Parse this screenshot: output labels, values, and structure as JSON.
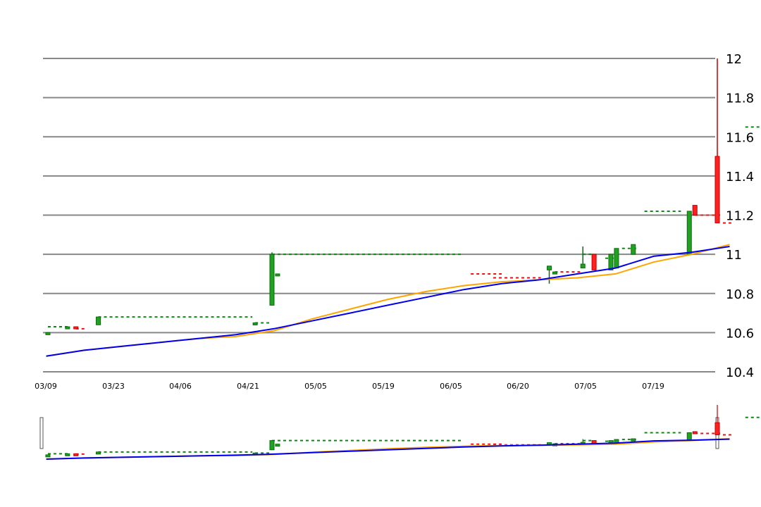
{
  "chart_data": {
    "type": "candlestick",
    "x_tick_labels": [
      "03/09",
      "03/23",
      "04/06",
      "04/21",
      "05/05",
      "05/19",
      "06/05",
      "06/20",
      "07/05",
      "07/19"
    ],
    "y_tick_labels": [
      "10.4",
      "10.6",
      "10.8",
      "11",
      "11.2",
      "11.4",
      "11.6",
      "11.8",
      "12"
    ],
    "ylim": [
      10.4,
      12.0
    ],
    "grid": true,
    "colors": {
      "up": "#22a022",
      "up_border": "#0a6f0a",
      "down": "#ff2020",
      "down_border": "#c00000",
      "ma_short": "#0000ee",
      "ma_long": "#ffa500",
      "grid": "#888888",
      "dash_up": "#118811",
      "dash_down": "#ee1111"
    },
    "candles": [
      {
        "x": 0.5,
        "open": 10.6,
        "close": 10.6,
        "high": 10.6,
        "low": 10.6
      },
      {
        "x": 4,
        "open": 10.62,
        "close": 10.63,
        "high": 10.63,
        "low": 10.62
      },
      {
        "x": 5.5,
        "open": 10.63,
        "close": 10.62,
        "high": 10.63,
        "low": 10.62
      },
      {
        "x": 9.5,
        "open": 10.64,
        "close": 10.68,
        "high": 10.68,
        "low": 10.64
      },
      {
        "x": 37.5,
        "open": 10.645,
        "close": 10.65,
        "high": 10.65,
        "low": 10.645
      },
      {
        "x": 40.5,
        "open": 10.74,
        "close": 11.0,
        "high": 11.01,
        "low": 10.74
      },
      {
        "x": 41.5,
        "open": 10.9,
        "close": 10.9,
        "high": 10.9,
        "low": 10.9
      },
      {
        "x": 90,
        "open": 10.92,
        "close": 10.94,
        "high": 10.94,
        "low": 10.85
      },
      {
        "x": 91,
        "open": 10.91,
        "close": 10.91,
        "high": 10.91,
        "low": 10.91
      },
      {
        "x": 96,
        "open": 10.93,
        "close": 10.95,
        "high": 11.04,
        "low": 10.93
      },
      {
        "x": 98,
        "open": 11.0,
        "close": 10.92,
        "high": 11.0,
        "low": 10.92
      },
      {
        "x": 101,
        "open": 10.92,
        "close": 11.0,
        "high": 11.0,
        "low": 10.92
      },
      {
        "x": 102,
        "open": 10.93,
        "close": 11.03,
        "high": 11.03,
        "low": 10.93
      },
      {
        "x": 105,
        "open": 11.0,
        "close": 11.05,
        "high": 11.05,
        "low": 11.0
      },
      {
        "x": 115,
        "open": 11.0,
        "close": 11.22,
        "high": 11.22,
        "low": 11.0
      },
      {
        "x": 116,
        "open": 11.25,
        "close": 11.2,
        "high": 11.25,
        "low": 11.2
      },
      {
        "x": 120,
        "open": 11.5,
        "close": 11.16,
        "high": 12.0,
        "low": 11.16
      }
    ],
    "dashed_levels": [
      {
        "x_start": 0.5,
        "x_end": 4,
        "value": 10.63,
        "direction": "up"
      },
      {
        "x_start": 5.5,
        "x_end": 7,
        "value": 10.62,
        "direction": "down"
      },
      {
        "x_start": 9.5,
        "x_end": 36.5,
        "value": 10.68,
        "direction": "up"
      },
      {
        "x_start": 37.5,
        "x_end": 39.5,
        "value": 10.65,
        "direction": "up"
      },
      {
        "x_start": 40.5,
        "x_end": 74,
        "value": 11.0,
        "direction": "up"
      },
      {
        "x_start": 76,
        "x_end": 81,
        "value": 10.9,
        "direction": "down"
      },
      {
        "x_start": 80,
        "x_end": 88,
        "value": 10.88,
        "direction": "down"
      },
      {
        "x_start": 91,
        "x_end": 95,
        "value": 10.91,
        "direction": "down"
      },
      {
        "x_start": 96,
        "x_end": 97,
        "value": 11.0,
        "direction": "up"
      },
      {
        "x_start": 100,
        "x_end": 101,
        "value": 10.98,
        "direction": "up"
      },
      {
        "x_start": 103,
        "x_end": 105,
        "value": 11.03,
        "direction": "up"
      },
      {
        "x_start": 107,
        "x_end": 113,
        "value": 11.22,
        "direction": "up"
      },
      {
        "x_start": 116,
        "x_end": 120,
        "value": 11.2,
        "direction": "down"
      },
      {
        "x_start": 121,
        "x_end": 122,
        "value": 11.16,
        "direction": "down"
      },
      {
        "x_start": 125,
        "x_end": 127,
        "value": 11.65,
        "direction": "up"
      }
    ],
    "ma_short": [
      10.48,
      10.51,
      10.53,
      10.55,
      10.57,
      10.59,
      10.62,
      10.66,
      10.7,
      10.74,
      10.78,
      10.82,
      10.85,
      10.87,
      10.9,
      10.93,
      10.99,
      11.01,
      11.04
    ],
    "ma_long": [
      10.48,
      10.51,
      10.53,
      10.55,
      10.57,
      10.58,
      10.61,
      10.67,
      10.72,
      10.77,
      10.81,
      10.84,
      10.86,
      10.87,
      10.88,
      10.9,
      10.96,
      11.0,
      11.05
    ]
  }
}
